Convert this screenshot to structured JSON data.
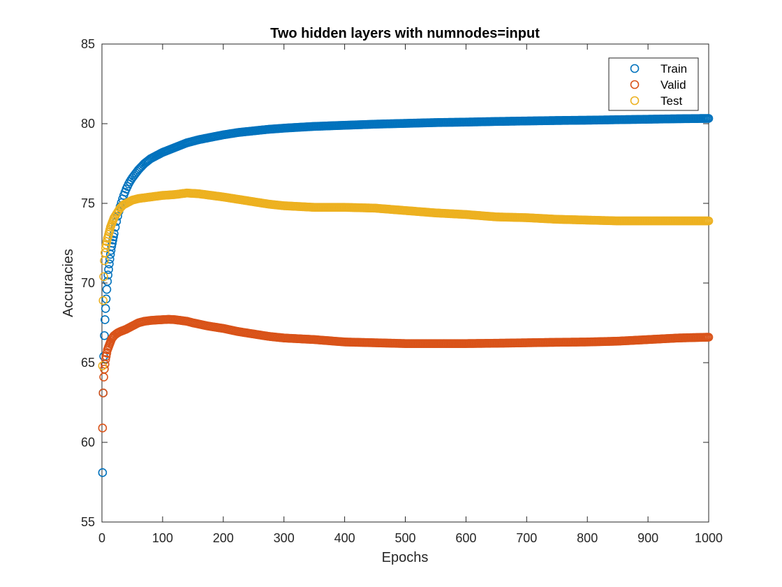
{
  "chart_data": {
    "type": "scatter",
    "title": "Two hidden layers with numnodes=input",
    "xlabel": "Epochs",
    "ylabel": "Accuracies",
    "xlim": [
      0,
      1000
    ],
    "ylim": [
      55,
      85
    ],
    "xticks": [
      0,
      100,
      200,
      300,
      400,
      500,
      600,
      700,
      800,
      900,
      1000
    ],
    "yticks": [
      55,
      60,
      65,
      70,
      75,
      80,
      85
    ],
    "grid": false,
    "legend": {
      "placement": "top-right"
    },
    "marker": "open-circle",
    "series": [
      {
        "name": "Train",
        "color": "#0072BD",
        "x": [
          1,
          2,
          3,
          4,
          5,
          6,
          7,
          8,
          9,
          10,
          12,
          14,
          16,
          18,
          20,
          23,
          26,
          30,
          35,
          40,
          45,
          50,
          60,
          70,
          80,
          90,
          100,
          120,
          140,
          160,
          180,
          200,
          225,
          250,
          275,
          300,
          350,
          400,
          450,
          500,
          550,
          600,
          650,
          700,
          750,
          800,
          850,
          900,
          950,
          1000
        ],
        "y": [
          58.1,
          63.1,
          65.4,
          66.7,
          67.7,
          68.4,
          69.0,
          69.6,
          70.1,
          70.5,
          71.2,
          71.8,
          72.3,
          72.7,
          73.1,
          73.7,
          74.2,
          74.8,
          75.4,
          75.9,
          76.3,
          76.6,
          77.1,
          77.5,
          77.8,
          78.0,
          78.2,
          78.5,
          78.8,
          79.0,
          79.15,
          79.3,
          79.45,
          79.55,
          79.65,
          79.72,
          79.83,
          79.9,
          79.97,
          80.02,
          80.07,
          80.1,
          80.14,
          80.17,
          80.2,
          80.22,
          80.25,
          80.28,
          80.31,
          80.33
        ]
      },
      {
        "name": "Valid",
        "color": "#D95319",
        "x": [
          1,
          2,
          3,
          4,
          5,
          6,
          7,
          8,
          9,
          10,
          12,
          14,
          16,
          18,
          20,
          25,
          30,
          40,
          50,
          60,
          70,
          80,
          90,
          100,
          110,
          120,
          130,
          140,
          150,
          175,
          200,
          225,
          250,
          275,
          300,
          350,
          400,
          450,
          500,
          550,
          600,
          650,
          700,
          750,
          800,
          850,
          900,
          950,
          1000
        ],
        "y": [
          60.9,
          63.1,
          64.1,
          64.6,
          64.9,
          65.2,
          65.4,
          65.6,
          65.8,
          65.9,
          66.1,
          66.3,
          66.5,
          66.6,
          66.7,
          66.85,
          66.95,
          67.1,
          67.3,
          67.5,
          67.6,
          67.65,
          67.68,
          67.7,
          67.72,
          67.7,
          67.65,
          67.6,
          67.5,
          67.3,
          67.15,
          66.95,
          66.8,
          66.65,
          66.55,
          66.45,
          66.3,
          66.25,
          66.2,
          66.2,
          66.2,
          66.22,
          66.25,
          66.28,
          66.3,
          66.35,
          66.45,
          66.55,
          66.6
        ]
      },
      {
        "name": "Test",
        "color": "#EDB120",
        "x": [
          1,
          2,
          3,
          4,
          5,
          6,
          7,
          8,
          9,
          10,
          12,
          14,
          16,
          18,
          20,
          25,
          30,
          35,
          40,
          50,
          60,
          70,
          80,
          90,
          100,
          120,
          140,
          160,
          180,
          200,
          225,
          250,
          275,
          300,
          350,
          400,
          450,
          500,
          550,
          600,
          650,
          700,
          750,
          800,
          850,
          900,
          950,
          1000
        ],
        "y": [
          64.8,
          68.9,
          70.4,
          71.4,
          71.9,
          72.2,
          72.4,
          72.6,
          72.8,
          72.9,
          73.2,
          73.5,
          73.7,
          73.9,
          74.1,
          74.4,
          74.7,
          74.9,
          75.0,
          75.2,
          75.3,
          75.35,
          75.4,
          75.45,
          75.5,
          75.55,
          75.65,
          75.6,
          75.5,
          75.4,
          75.25,
          75.1,
          74.95,
          74.85,
          74.75,
          74.75,
          74.7,
          74.55,
          74.4,
          74.3,
          74.15,
          74.1,
          74.0,
          73.95,
          73.9,
          73.9,
          73.9,
          73.9
        ]
      }
    ]
  }
}
